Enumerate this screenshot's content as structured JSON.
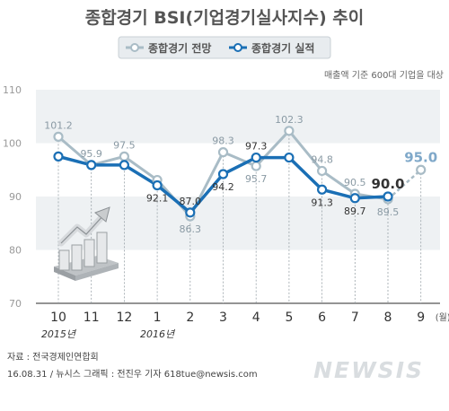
{
  "chart_data": {
    "type": "line",
    "title": "종합경기 BSI(기업경기실사지수) 추이",
    "note": "매출액 기준 600대 기업을 대상",
    "x": [
      "10",
      "11",
      "12",
      "1",
      "2",
      "3",
      "4",
      "5",
      "6",
      "7",
      "8",
      "9"
    ],
    "x_unit": "(월)",
    "year_labels": [
      {
        "label": "2015년",
        "at": "10"
      },
      {
        "label": "2016년",
        "at": "1"
      }
    ],
    "ylim": [
      70,
      110
    ],
    "yticks": [
      70,
      80,
      90,
      100,
      110
    ],
    "grid": "horizontal bands",
    "legend_position": "top-center",
    "series": [
      {
        "name": "종합경기 전망",
        "color": "#a9bcc6",
        "values": [
          101.2,
          95.9,
          97.5,
          93.1,
          86.3,
          98.3,
          95.7,
          102.3,
          94.8,
          90.5,
          89.5,
          95.0
        ],
        "labels": [
          "101.2",
          "95.9",
          "97.5",
          "",
          "86.3",
          "98.3",
          "95.7",
          "102.3",
          "94.8",
          "90.5",
          "89.5",
          "95.0"
        ],
        "forecast_from_index": 10
      },
      {
        "name": "종합경기 실적",
        "color": "#1a6fb5",
        "values": [
          97.5,
          95.9,
          95.9,
          92.1,
          87.0,
          94.2,
          97.3,
          97.3,
          91.3,
          89.7,
          90.0,
          null
        ],
        "labels": [
          "",
          "",
          "",
          "92.1",
          "87.0",
          "94.2",
          "97.3",
          "",
          "91.3",
          "89.7",
          "90.0",
          ""
        ]
      }
    ]
  },
  "footer": {
    "source": "자료 : 전국경제인연합회",
    "credit": "16.08.31 / 뉴시스 그래픽 : 전진우 기자 618tue@newsis.com"
  },
  "watermark": "NEWSIS",
  "icon": "rising-bar-chart-icon",
  "colors": {
    "accent_blue": "#1a6fb5",
    "forecast_gray": "#a9bcc6",
    "band": "#eef1f3"
  }
}
